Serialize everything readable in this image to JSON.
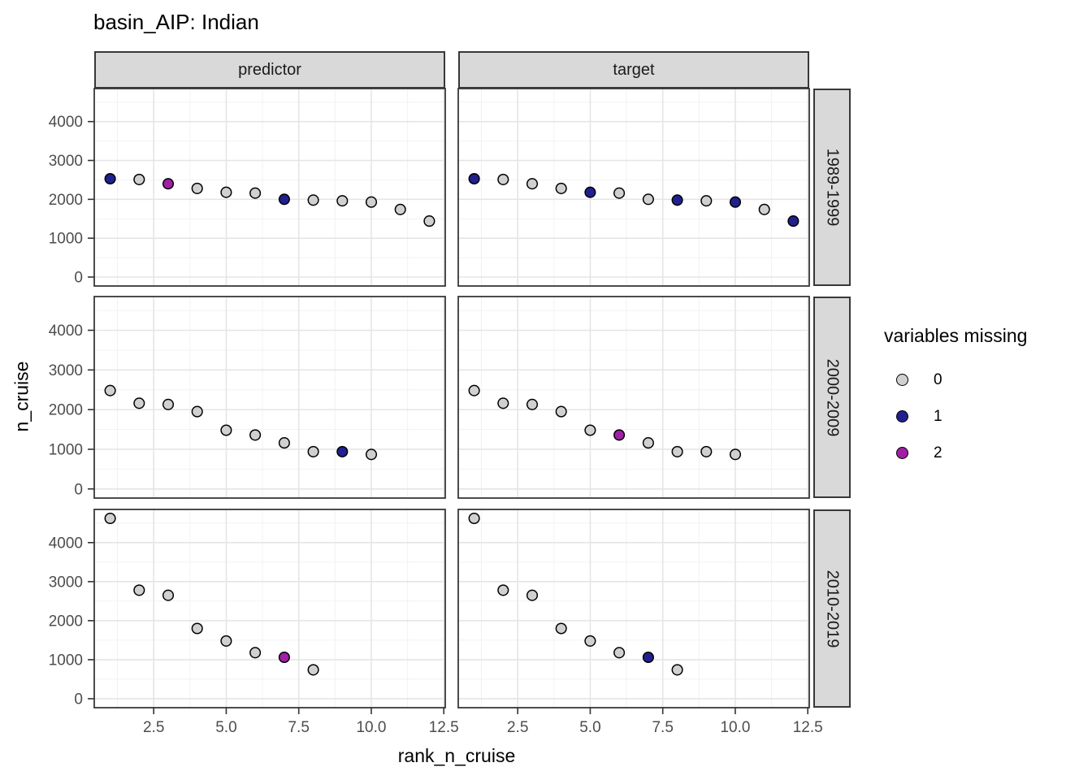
{
  "chart_data": {
    "type": "scatter",
    "title": "basin_AIP: Indian",
    "xlabel": "rank_n_cruise",
    "ylabel": "n_cruise",
    "legend": {
      "title": "variables missing",
      "entries": [
        {
          "label": "0",
          "color": "#d0d0d0"
        },
        {
          "label": "1",
          "color": "#20208f"
        },
        {
          "label": "2",
          "color": "#a01fa5"
        }
      ]
    },
    "facet_columns": [
      "predictor",
      "target"
    ],
    "facet_rows": [
      "1989-1999",
      "2000-2009",
      "2010-2019"
    ],
    "x_ticks": [
      "2.5",
      "5.0",
      "7.5",
      "10.0",
      "12.5"
    ],
    "x_tick_values": [
      2.5,
      5.0,
      7.5,
      10.0,
      12.5
    ],
    "y_ticks": [
      "0",
      "1000",
      "2000",
      "3000",
      "4000"
    ],
    "y_tick_values": [
      0,
      1000,
      2000,
      3000,
      4000
    ],
    "x_minor": [
      1.25,
      3.75,
      6.25,
      8.75,
      11.25
    ],
    "y_minor": [
      500,
      1500,
      2500,
      3500,
      4500
    ],
    "xlim": [
      0.45,
      12.55
    ],
    "ylim": [
      -230,
      4850
    ],
    "grid": true,
    "legend_position": "right",
    "panels": [
      {
        "row": "1989-1999",
        "col": "predictor",
        "x": [
          1,
          2,
          3,
          4,
          5,
          6,
          7,
          8,
          9,
          10,
          11,
          12
        ],
        "y": [
          2530,
          2510,
          2400,
          2280,
          2180,
          2160,
          2000,
          1980,
          1960,
          1930,
          1740,
          1440
        ],
        "missing": [
          1,
          0,
          2,
          0,
          0,
          0,
          1,
          0,
          0,
          0,
          0,
          0
        ]
      },
      {
        "row": "1989-1999",
        "col": "target",
        "x": [
          1,
          2,
          3,
          4,
          5,
          6,
          7,
          8,
          9,
          10,
          11,
          12
        ],
        "y": [
          2530,
          2510,
          2400,
          2280,
          2180,
          2160,
          2000,
          1980,
          1960,
          1930,
          1740,
          1440
        ],
        "missing": [
          1,
          0,
          0,
          0,
          1,
          0,
          0,
          1,
          0,
          1,
          0,
          1
        ]
      },
      {
        "row": "2000-2009",
        "col": "predictor",
        "x": [
          1,
          2,
          3,
          4,
          5,
          6,
          7,
          8,
          9,
          10
        ],
        "y": [
          2480,
          2160,
          2130,
          1950,
          1480,
          1360,
          1160,
          940,
          940,
          870
        ],
        "missing": [
          0,
          0,
          0,
          0,
          0,
          0,
          0,
          0,
          1,
          0
        ]
      },
      {
        "row": "2000-2009",
        "col": "target",
        "x": [
          1,
          2,
          3,
          4,
          5,
          6,
          7,
          8,
          9,
          10
        ],
        "y": [
          2480,
          2160,
          2130,
          1950,
          1480,
          1360,
          1160,
          940,
          940,
          870
        ],
        "missing": [
          0,
          0,
          0,
          0,
          0,
          2,
          0,
          0,
          0,
          0
        ]
      },
      {
        "row": "2010-2019",
        "col": "predictor",
        "x": [
          1,
          2,
          3,
          4,
          5,
          6,
          7,
          8
        ],
        "y": [
          4620,
          2780,
          2650,
          1800,
          1480,
          1180,
          1060,
          740
        ],
        "missing": [
          0,
          0,
          0,
          0,
          0,
          0,
          2,
          0
        ]
      },
      {
        "row": "2010-2019",
        "col": "target",
        "x": [
          1,
          2,
          3,
          4,
          5,
          6,
          7,
          8
        ],
        "y": [
          4620,
          2780,
          2650,
          1800,
          1480,
          1180,
          1060,
          740
        ],
        "missing": [
          0,
          0,
          0,
          0,
          0,
          0,
          1,
          0
        ]
      }
    ],
    "colors": {
      "strip_bg": "#d9d9d9",
      "panel_border": "#383838",
      "grid_major": "#e5e5e5",
      "grid_minor": "#f2f2f2",
      "tick_mark": "#333333",
      "tick_label": "#4d4d4d",
      "point_stroke": "#000000"
    }
  }
}
